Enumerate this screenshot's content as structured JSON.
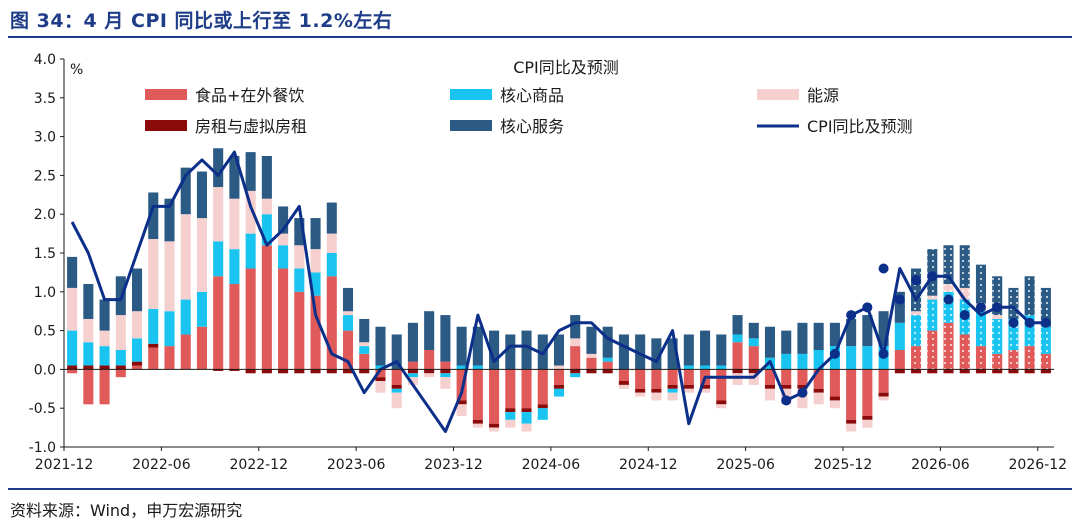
{
  "title": "图 34：4 月 CPI 同比或上行至 1.2%左右",
  "source": "资料来源：Wind，申万宏源研究",
  "colors": {
    "food": "#e05a5a",
    "core_goods": "#19c5f0",
    "energy": "#f6cfcf",
    "housing": "#8b0a0a",
    "core_services": "#2b5a84",
    "cpi": "#0c2f8a"
  },
  "chart_data": {
    "type": "bar",
    "title": "CPI同比及预测",
    "ylabel": "%",
    "ylim": [
      -1.0,
      4.0
    ],
    "yticks": [
      "4.0",
      "3.5",
      "3.0",
      "2.5",
      "2.0",
      "1.5",
      "1.0",
      "0.5",
      "0.0",
      "-0.5",
      "-1.0"
    ],
    "xtick_labels": [
      "2021-12",
      "2022-06",
      "2022-12",
      "2023-06",
      "2023-12",
      "2024-06",
      "2024-12",
      "2025-06",
      "2025-12",
      "2026-06",
      "2026-12"
    ],
    "n_months": 61,
    "forecast_start_index": 52,
    "legend": [
      "食品+在外餐饮",
      "核心商品",
      "能源",
      "房租与虚拟房租",
      "核心服务",
      "CPI同比及预测"
    ],
    "series": [
      {
        "name": "食品+在外餐饮",
        "values": [
          -0.05,
          -0.45,
          -0.45,
          -0.1,
          0.05,
          0.28,
          0.3,
          0.45,
          0.55,
          1.2,
          1.1,
          1.3,
          1.6,
          1.3,
          1.0,
          0.95,
          1.2,
          0.5,
          0.2,
          -0.1,
          -0.2,
          0.1,
          0.25,
          0.1,
          -0.4,
          -0.65,
          -0.7,
          -0.5,
          -0.5,
          -0.45,
          -0.2,
          0.3,
          0.15,
          0.1,
          -0.15,
          -0.25,
          -0.25,
          -0.2,
          -0.2,
          -0.2,
          -0.4,
          0.35,
          0.3,
          -0.2,
          -0.2,
          -0.2,
          -0.25,
          -0.35,
          -0.65,
          -0.6,
          -0.3,
          0.25,
          0.3,
          0.5,
          0.6,
          0.45,
          0.3,
          0.2,
          0.25,
          0.3,
          0.2
        ]
      },
      {
        "name": "核心商品",
        "values": [
          0.45,
          0.3,
          0.25,
          0.2,
          0.3,
          0.45,
          0.45,
          0.45,
          0.45,
          0.45,
          0.45,
          0.45,
          0.4,
          0.3,
          0.3,
          0.3,
          0.3,
          0.2,
          0.1,
          0.05,
          -0.05,
          -0.05,
          0.0,
          -0.05,
          0.05,
          0.05,
          0.0,
          -0.1,
          -0.15,
          -0.15,
          -0.1,
          -0.05,
          0.0,
          0.05,
          0.0,
          0.0,
          0.0,
          -0.05,
          0.05,
          0.05,
          0.05,
          0.1,
          0.1,
          0.15,
          0.2,
          0.2,
          0.25,
          0.3,
          0.3,
          0.3,
          0.3,
          0.35,
          0.4,
          0.4,
          0.4,
          0.45,
          0.45,
          0.45,
          0.4,
          0.4,
          0.35
        ]
      },
      {
        "name": "能源",
        "values": [
          0.55,
          0.3,
          0.2,
          0.45,
          0.35,
          0.9,
          0.9,
          1.1,
          0.95,
          0.7,
          0.65,
          0.55,
          0.2,
          0.15,
          0.3,
          0.3,
          0.25,
          0.05,
          0.05,
          -0.15,
          -0.2,
          -0.1,
          -0.05,
          -0.15,
          -0.15,
          -0.05,
          -0.05,
          -0.1,
          -0.1,
          0.0,
          0.05,
          0.1,
          0.05,
          0.0,
          -0.05,
          -0.05,
          -0.1,
          -0.1,
          -0.05,
          -0.05,
          -0.05,
          -0.15,
          -0.15,
          -0.15,
          -0.2,
          -0.25,
          -0.15,
          -0.1,
          -0.1,
          -0.1,
          -0.05,
          0.0,
          0.05,
          0.05,
          0.1,
          0.15,
          0.1,
          0.05,
          0.0,
          0.0,
          0.0
        ]
      },
      {
        "name": "房租与虚拟房租",
        "values": [
          0.05,
          0.05,
          0.05,
          0.05,
          0.05,
          0.05,
          0.0,
          0.0,
          0.0,
          -0.02,
          -0.02,
          -0.05,
          -0.05,
          -0.05,
          -0.05,
          -0.05,
          -0.05,
          -0.05,
          -0.05,
          -0.05,
          -0.05,
          -0.05,
          -0.05,
          -0.05,
          -0.05,
          -0.05,
          -0.05,
          -0.05,
          -0.05,
          -0.05,
          -0.05,
          -0.05,
          -0.05,
          -0.05,
          -0.05,
          -0.05,
          -0.05,
          -0.05,
          -0.05,
          -0.05,
          -0.05,
          -0.05,
          -0.05,
          -0.05,
          -0.05,
          -0.05,
          -0.05,
          -0.05,
          -0.05,
          -0.05,
          -0.05,
          -0.05,
          -0.05,
          -0.05,
          -0.05,
          -0.05,
          -0.05,
          -0.05,
          -0.05,
          -0.05,
          -0.05
        ]
      },
      {
        "name": "核心服务",
        "values": [
          0.4,
          0.45,
          0.4,
          0.5,
          0.55,
          0.6,
          0.55,
          0.6,
          0.6,
          0.5,
          0.55,
          0.5,
          0.55,
          0.35,
          0.35,
          0.4,
          0.4,
          0.3,
          0.3,
          0.5,
          0.45,
          0.5,
          0.5,
          0.6,
          0.5,
          0.5,
          0.5,
          0.45,
          0.5,
          0.45,
          0.4,
          0.3,
          0.35,
          0.4,
          0.45,
          0.45,
          0.4,
          0.4,
          0.4,
          0.45,
          0.4,
          0.25,
          0.2,
          0.4,
          0.3,
          0.4,
          0.35,
          0.3,
          0.35,
          0.4,
          0.45,
          0.4,
          0.55,
          0.6,
          0.5,
          0.55,
          0.5,
          0.5,
          0.4,
          0.5,
          0.5
        ]
      },
      {
        "name": "CPI同比及预测",
        "values": [
          1.9,
          1.5,
          0.9,
          0.9,
          1.5,
          2.1,
          2.1,
          2.5,
          2.7,
          2.5,
          2.8,
          2.1,
          1.6,
          1.8,
          2.1,
          0.7,
          0.2,
          0.1,
          -0.3,
          0.0,
          0.1,
          -0.2,
          -0.5,
          -0.8,
          -0.3,
          0.7,
          0.1,
          0.3,
          0.3,
          0.2,
          0.5,
          0.6,
          0.6,
          0.4,
          0.3,
          0.2,
          0.1,
          0.5,
          -0.7,
          -0.1,
          -0.1,
          -0.1,
          -0.1,
          0.1,
          -0.4,
          -0.3,
          0.0,
          0.2,
          0.7,
          0.8,
          0.2,
          1.3,
          0.9,
          1.2,
          1.2,
          0.9,
          0.7,
          0.8,
          0.8,
          0.6,
          0.6
        ]
      }
    ],
    "forecast_cpi_markers": [
      1.3,
      0.9,
      1.15,
      1.2,
      0.9,
      0.7,
      0.8,
      0.8,
      0.6,
      0.6,
      0.6
    ]
  }
}
